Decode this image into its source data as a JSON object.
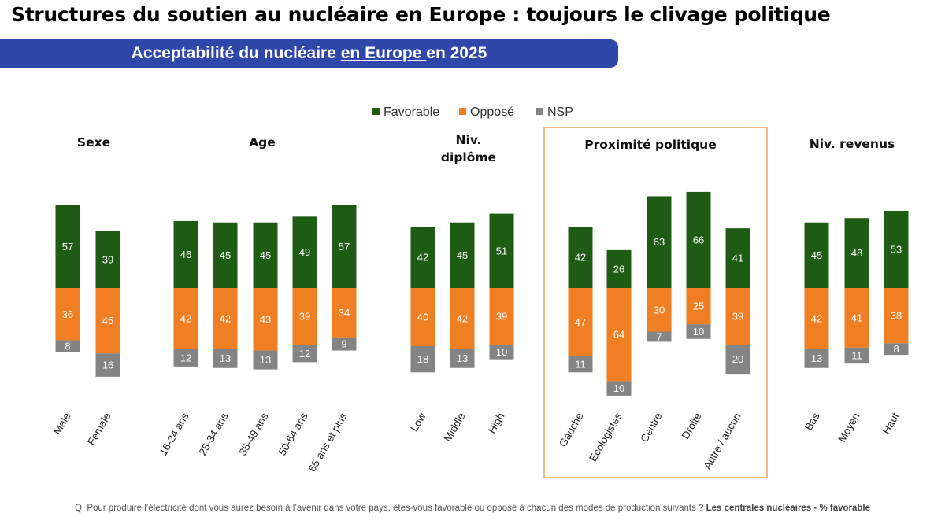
{
  "title": "Structures du soutien au nucléaire en Europe : toujours le clivage politique",
  "banner": {
    "pre": "Acceptabilité du nucléaire ",
    "underlined": "en Europe ",
    "post": "en 2025"
  },
  "footnote": {
    "question": "Q. Pour produire l’électricité dont vous aurez besoin à l’avenir dans votre pays, êtes-vous favorable ou opposé à chacun des modes de production suivants ?",
    "bold": "Les centrales nucléaires - % favorable"
  },
  "colors": {
    "favorable": "#1e5c14",
    "oppose": "#ef7f22",
    "nsp": "#848484",
    "highlight": "#f1a35a"
  },
  "chart_data": {
    "type": "bar",
    "stacked": true,
    "legend": [
      "Favorable",
      "Opposé",
      "NSP"
    ],
    "legend_position": "top",
    "highlighted_group": "Proximité politique",
    "groups": [
      {
        "title": [
          "Sexe"
        ],
        "categories": [
          "Male",
          "Female"
        ],
        "series": [
          {
            "name": "Favorable",
            "values": [
              57,
              39
            ]
          },
          {
            "name": "Opposé",
            "values": [
              36,
              45
            ]
          },
          {
            "name": "NSP",
            "values": [
              8,
              16
            ]
          }
        ]
      },
      {
        "title": [
          "Age"
        ],
        "categories": [
          "16-24 ans",
          "25-34 ans",
          "35-49 ans",
          "50-64 ans",
          "65 ans et plus"
        ],
        "series": [
          {
            "name": "Favorable",
            "values": [
              46,
              45,
              45,
              49,
              57
            ]
          },
          {
            "name": "Opposé",
            "values": [
              42,
              42,
              43,
              39,
              34
            ]
          },
          {
            "name": "NSP",
            "values": [
              12,
              13,
              13,
              12,
              9
            ]
          }
        ]
      },
      {
        "title": [
          "Niv.",
          "diplôme"
        ],
        "categories": [
          "Low",
          "Middle",
          "High"
        ],
        "series": [
          {
            "name": "Favorable",
            "values": [
              42,
              45,
              51
            ]
          },
          {
            "name": "Opposé",
            "values": [
              40,
              42,
              39
            ]
          },
          {
            "name": "NSP",
            "values": [
              18,
              13,
              10
            ]
          }
        ]
      },
      {
        "title": [
          "Proximité politique"
        ],
        "categories": [
          "Gauche",
          "Ecologistes",
          "Centre",
          "Droite",
          "Autre / aucun"
        ],
        "series": [
          {
            "name": "Favorable",
            "values": [
              42,
              26,
              63,
              66,
              41
            ]
          },
          {
            "name": "Opposé",
            "values": [
              47,
              64,
              30,
              25,
              39
            ]
          },
          {
            "name": "NSP",
            "values": [
              11,
              10,
              7,
              10,
              20
            ]
          }
        ]
      },
      {
        "title": [
          "Niv. revenus"
        ],
        "categories": [
          "Bas",
          "Moyen",
          "Haut"
        ],
        "series": [
          {
            "name": "Favorable",
            "values": [
              45,
              48,
              53
            ]
          },
          {
            "name": "Opposé",
            "values": [
              42,
              41,
              38
            ]
          },
          {
            "name": "NSP",
            "values": [
              13,
              11,
              8
            ]
          }
        ]
      }
    ]
  }
}
